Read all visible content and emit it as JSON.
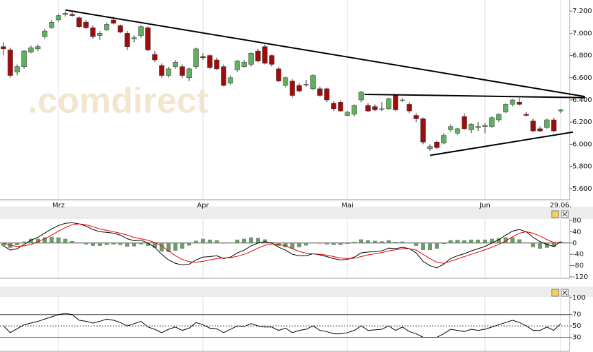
{
  "chart_data": [
    {
      "type": "candlestick",
      "watermark": ".comdirect",
      "categories": [
        null,
        null,
        null,
        null,
        null,
        null,
        null,
        null,
        "Mrz",
        null,
        null,
        null,
        null,
        null,
        null,
        null,
        null,
        null,
        null,
        null,
        null,
        null,
        null,
        null,
        null,
        null,
        null,
        null,
        null,
        "Apr",
        null,
        null,
        null,
        null,
        null,
        null,
        null,
        null,
        null,
        null,
        null,
        null,
        null,
        null,
        null,
        null,
        null,
        null,
        null,
        null,
        "Mai",
        null,
        null,
        null,
        null,
        null,
        null,
        null,
        null,
        null,
        null,
        null,
        null,
        null,
        null,
        null,
        null,
        null,
        null,
        null,
        "Jun",
        null,
        null,
        null,
        null,
        null,
        null,
        null,
        null,
        null,
        null,
        "29.06."
      ],
      "candles": [
        [
          6.88,
          6.92,
          6.8,
          6.86
        ],
        [
          6.85,
          6.87,
          6.6,
          6.62
        ],
        [
          6.65,
          6.72,
          6.62,
          6.7
        ],
        [
          6.7,
          6.85,
          6.68,
          6.84
        ],
        [
          6.83,
          6.89,
          6.82,
          6.87
        ],
        [
          6.86,
          6.9,
          6.84,
          6.88
        ],
        [
          6.97,
          7.04,
          6.95,
          7.02
        ],
        [
          7.05,
          7.12,
          7.04,
          7.1
        ],
        [
          7.12,
          7.18,
          7.1,
          7.16
        ],
        [
          7.17,
          7.2,
          7.15,
          7.18
        ],
        [
          7.17,
          7.19,
          7.15,
          7.16
        ],
        [
          7.14,
          7.15,
          7.05,
          7.06
        ],
        [
          7.1,
          7.12,
          7.04,
          7.05
        ],
        [
          7.05,
          7.07,
          6.95,
          6.97
        ],
        [
          6.98,
          7.02,
          6.94,
          7.0
        ],
        [
          7.03,
          7.1,
          7.02,
          7.08
        ],
        [
          7.12,
          7.15,
          7.08,
          7.09
        ],
        [
          7.07,
          7.08,
          7.0,
          7.01
        ],
        [
          7.0,
          7.02,
          6.85,
          6.88
        ],
        [
          6.95,
          6.98,
          6.92,
          6.96
        ],
        [
          6.98,
          7.07,
          6.96,
          7.06
        ],
        [
          7.05,
          7.06,
          6.84,
          6.85
        ],
        [
          6.81,
          6.84,
          6.74,
          6.76
        ],
        [
          6.71,
          6.73,
          6.6,
          6.62
        ],
        [
          6.62,
          6.7,
          6.6,
          6.68
        ],
        [
          6.7,
          6.76,
          6.68,
          6.74
        ],
        [
          6.7,
          6.72,
          6.6,
          6.62
        ],
        [
          6.6,
          6.69,
          6.57,
          6.68
        ],
        [
          6.7,
          6.87,
          6.68,
          6.86
        ],
        [
          6.79,
          6.82,
          6.76,
          6.78
        ],
        [
          6.8,
          6.81,
          6.68,
          6.69
        ],
        [
          6.76,
          6.78,
          6.67,
          6.68
        ],
        [
          6.7,
          6.72,
          6.52,
          6.53
        ],
        [
          6.55,
          6.62,
          6.53,
          6.6
        ],
        [
          6.67,
          6.76,
          6.65,
          6.75
        ],
        [
          6.7,
          6.76,
          6.69,
          6.74
        ],
        [
          6.72,
          6.83,
          6.7,
          6.82
        ],
        [
          6.84,
          6.86,
          6.74,
          6.75
        ],
        [
          6.88,
          6.9,
          6.72,
          6.73
        ],
        [
          6.8,
          6.81,
          6.7,
          6.72
        ],
        [
          6.68,
          6.7,
          6.56,
          6.57
        ],
        [
          6.53,
          6.61,
          6.51,
          6.6
        ],
        [
          6.57,
          6.59,
          6.42,
          6.44
        ],
        [
          6.53,
          6.55,
          6.47,
          6.48
        ],
        [
          6.54,
          6.58,
          6.52,
          6.54
        ],
        [
          6.5,
          6.63,
          6.49,
          6.62
        ],
        [
          6.5,
          6.52,
          6.43,
          6.44
        ],
        [
          6.5,
          6.51,
          6.38,
          6.4
        ],
        [
          6.37,
          6.39,
          6.3,
          6.32
        ],
        [
          6.38,
          6.4,
          6.29,
          6.3
        ],
        [
          6.26,
          6.3,
          6.25,
          6.29
        ],
        [
          6.27,
          6.36,
          6.25,
          6.35
        ],
        [
          6.4,
          6.48,
          6.38,
          6.47
        ],
        [
          6.35,
          6.37,
          6.29,
          6.3
        ],
        [
          6.34,
          6.36,
          6.3,
          6.31
        ],
        [
          6.32,
          6.38,
          6.3,
          6.32
        ],
        [
          6.32,
          6.42,
          6.31,
          6.41
        ],
        [
          6.44,
          6.45,
          6.3,
          6.31
        ],
        [
          6.4,
          6.42,
          6.38,
          6.4
        ],
        [
          6.36,
          6.38,
          6.28,
          6.3
        ],
        [
          6.26,
          6.28,
          6.2,
          6.23
        ],
        [
          6.23,
          6.24,
          6.0,
          6.02
        ],
        [
          5.96,
          6.0,
          5.94,
          5.98
        ],
        [
          6.02,
          6.03,
          5.96,
          5.97
        ],
        [
          6.01,
          6.1,
          6.0,
          6.08
        ],
        [
          6.13,
          6.18,
          6.11,
          6.16
        ],
        [
          6.1,
          6.15,
          6.08,
          6.14
        ],
        [
          6.25,
          6.28,
          6.13,
          6.14
        ],
        [
          6.13,
          6.19,
          6.1,
          6.18
        ],
        [
          6.15,
          6.2,
          6.12,
          6.16
        ],
        [
          6.16,
          6.19,
          6.1,
          6.17
        ],
        [
          6.16,
          6.25,
          6.15,
          6.24
        ],
        [
          6.22,
          6.28,
          6.2,
          6.27
        ],
        [
          6.29,
          6.37,
          6.28,
          6.36
        ],
        [
          6.36,
          6.41,
          6.34,
          6.4
        ],
        [
          6.38,
          6.42,
          6.35,
          6.36
        ],
        [
          6.27,
          6.29,
          6.25,
          6.26
        ],
        [
          6.21,
          6.23,
          6.11,
          6.12
        ],
        [
          6.14,
          6.16,
          6.11,
          6.12
        ],
        [
          6.15,
          6.23,
          6.14,
          6.22
        ],
        [
          6.22,
          6.24,
          6.11,
          6.12
        ],
        [
          6.3,
          6.32,
          6.28,
          6.31
        ]
      ],
      "color_up": "#5fb05f",
      "color_down": "#9e0c0c",
      "trendlines": [
        {
          "from": [
            9,
            7.21
          ],
          "to": [
            84.5,
            6.43
          ]
        },
        {
          "from": [
            52.5,
            6.45
          ],
          "to": [
            84.5,
            6.42
          ]
        },
        {
          "from": [
            62,
            5.9
          ],
          "to": [
            82.8,
            6.11
          ]
        }
      ],
      "ylim": [
        5.5,
        7.3
      ],
      "yticks": [
        {
          "value": 5.6,
          "label": "5.600"
        },
        {
          "value": 5.8,
          "label": "5.800"
        },
        {
          "value": 6.0,
          "label": "6.000"
        },
        {
          "value": 6.2,
          "label": "6.200"
        },
        {
          "value": 6.4,
          "label": "6.400"
        },
        {
          "value": 6.6,
          "label": "6.600"
        },
        {
          "value": 6.8,
          "label": "6.800"
        },
        {
          "value": 7.0,
          "label": "7.000"
        },
        {
          "value": 7.2,
          "label": "7.200"
        }
      ]
    },
    {
      "type": "combo",
      "bars": {
        "color": "#6f9a6f",
        "values": [
          -10,
          -17,
          -8,
          5,
          15,
          15,
          20,
          22,
          20,
          15,
          7,
          0,
          -5,
          -10,
          -10,
          -7,
          -5,
          -7,
          -13,
          -12,
          -5,
          -10,
          -17,
          -30,
          -32,
          -27,
          -20,
          -9,
          8,
          15,
          12,
          10,
          -2,
          2,
          12,
          15,
          20,
          18,
          13,
          3,
          -10,
          -15,
          -20,
          -15,
          -9,
          0,
          -2,
          -5,
          -7,
          -7,
          -3,
          4,
          13,
          10,
          8,
          6,
          10,
          4,
          5,
          0,
          -10,
          -25,
          -25,
          -20,
          -3,
          10,
          11,
          10,
          12,
          12,
          12,
          15,
          17,
          20,
          20,
          13,
          0,
          -15,
          -20,
          -17,
          -14,
          5
        ]
      },
      "series": [
        {
          "color": "#000000",
          "values": [
            -10,
            -25,
            -20,
            -5,
            10,
            20,
            35,
            50,
            62,
            70,
            72,
            68,
            60,
            48,
            40,
            38,
            35,
            28,
            15,
            8,
            10,
            0,
            -15,
            -40,
            -60,
            -72,
            -78,
            -75,
            -60,
            -50,
            -48,
            -45,
            -55,
            -50,
            -35,
            -25,
            -10,
            0,
            5,
            0,
            -15,
            -25,
            -40,
            -45,
            -45,
            -38,
            -42,
            -48,
            -55,
            -60,
            -58,
            -50,
            -35,
            -32,
            -30,
            -28,
            -18,
            -20,
            -15,
            -20,
            -35,
            -65,
            -80,
            -88,
            -75,
            -55,
            -45,
            -38,
            -28,
            -20,
            -12,
            0,
            12,
            28,
            42,
            48,
            40,
            20,
            5,
            -5,
            -12,
            5
          ]
        },
        {
          "color": "#e00000",
          "values": [
            0,
            -8,
            -12,
            -10,
            -5,
            5,
            15,
            28,
            42,
            55,
            65,
            68,
            65,
            58,
            50,
            45,
            40,
            35,
            28,
            20,
            15,
            10,
            2,
            -10,
            -28,
            -45,
            -58,
            -66,
            -68,
            -65,
            -60,
            -55,
            -53,
            -52,
            -47,
            -40,
            -30,
            -18,
            -8,
            -3,
            -5,
            -10,
            -20,
            -30,
            -36,
            -38,
            -40,
            -43,
            -48,
            -53,
            -55,
            -54,
            -48,
            -42,
            -38,
            -34,
            -28,
            -24,
            -20,
            -20,
            -25,
            -40,
            -55,
            -68,
            -72,
            -65,
            -56,
            -48,
            -40,
            -32,
            -24,
            -15,
            -5,
            8,
            22,
            35,
            40,
            35,
            25,
            12,
            2,
            0
          ]
        }
      ],
      "ylim": [
        -125,
        85
      ],
      "yticks": [
        80,
        40,
        0,
        -40,
        -80,
        -120
      ]
    },
    {
      "type": "rsi",
      "color": "#000000",
      "values": [
        50,
        38,
        45,
        52,
        55,
        58,
        62,
        66,
        70,
        72,
        70,
        60,
        58,
        55,
        58,
        62,
        60,
        56,
        50,
        54,
        58,
        48,
        44,
        38,
        44,
        48,
        42,
        46,
        56,
        52,
        46,
        45,
        38,
        44,
        50,
        49,
        54,
        50,
        48,
        48,
        42,
        46,
        38,
        42,
        44,
        50,
        42,
        40,
        36,
        36,
        38,
        42,
        50,
        42,
        43,
        44,
        50,
        42,
        48,
        40,
        36,
        30,
        30,
        30,
        36,
        44,
        42,
        40,
        44,
        42,
        44,
        48,
        52,
        56,
        60,
        56,
        50,
        42,
        42,
        48,
        42,
        54
      ],
      "reference_lines": [
        {
          "value": 70
        },
        {
          "value": 50,
          "dashed": true
        },
        {
          "value": 30
        }
      ],
      "ylim": [
        5,
        105
      ],
      "yticks": [
        100,
        70,
        50,
        30
      ]
    }
  ]
}
